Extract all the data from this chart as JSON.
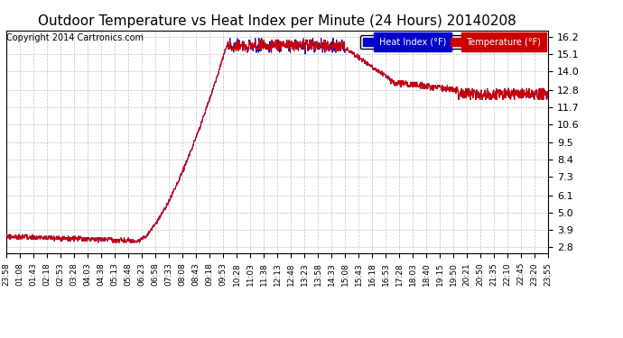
{
  "title": "Outdoor Temperature vs Heat Index per Minute (24 Hours) 20140208",
  "copyright": "Copyright 2014 Cartronics.com",
  "legend_heat_index": "Heat Index (°F)",
  "legend_temperature": "Temperature (°F)",
  "heat_index_color": "#0000cc",
  "temperature_color": "#cc0000",
  "background_color": "#ffffff",
  "plot_background": "#ffffff",
  "grid_color": "#aaaaaa",
  "yticks": [
    2.8,
    3.9,
    5.0,
    6.1,
    7.3,
    8.4,
    9.5,
    10.6,
    11.7,
    12.8,
    14.0,
    15.1,
    16.2
  ],
  "ylim": [
    2.4,
    16.6
  ],
  "xtick_labels": [
    "23:58",
    "01:08",
    "01:43",
    "02:18",
    "02:53",
    "03:28",
    "04:03",
    "04:38",
    "05:13",
    "05:48",
    "06:23",
    "06:58",
    "07:33",
    "08:08",
    "08:43",
    "09:18",
    "09:53",
    "10:28",
    "11:03",
    "11:38",
    "12:13",
    "12:48",
    "13:23",
    "13:58",
    "14:33",
    "15:08",
    "15:43",
    "16:18",
    "16:53",
    "17:28",
    "18:03",
    "18:40",
    "19:15",
    "19:50",
    "20:21",
    "20:50",
    "21:35",
    "22:10",
    "22:45",
    "23:20",
    "23:55"
  ],
  "n_points": 1440
}
